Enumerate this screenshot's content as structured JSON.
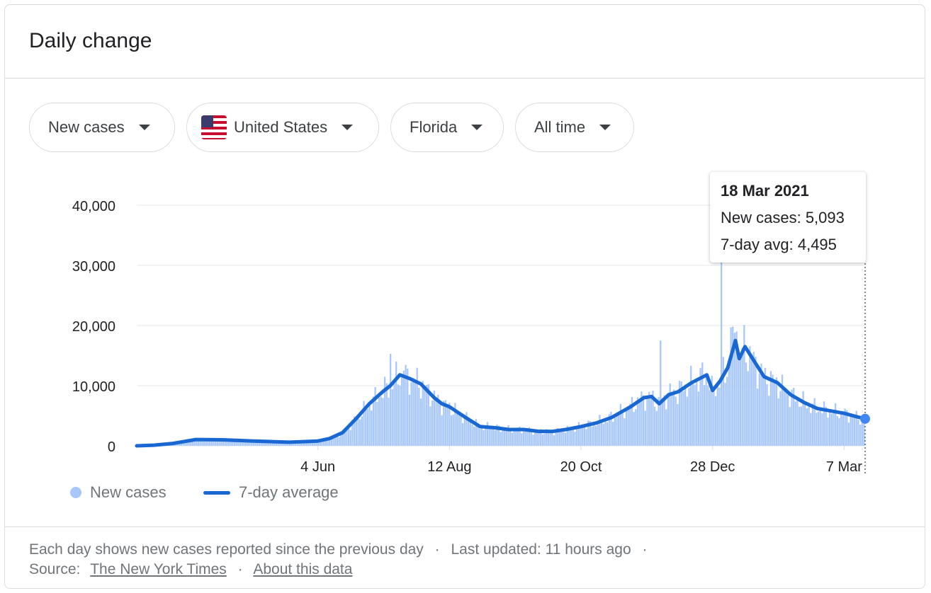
{
  "card": {
    "title": "Daily change"
  },
  "filters": {
    "metric": "New cases",
    "country": "United States",
    "country_flag_icon": "us-flag-icon",
    "region": "Florida",
    "range": "All time"
  },
  "tooltip": {
    "date": "18 Mar 2021",
    "new_cases": "New cases: 5,093",
    "avg": "7-day avg: 4,495"
  },
  "legend": {
    "new_cases": "New cases",
    "avg": "7-day average"
  },
  "footer": {
    "line1": "Each day shows new cases reported since the previous day",
    "sep": "·",
    "updated": "Last updated: 11 hours ago",
    "source_label": "Source:",
    "source_link": "The New York Times",
    "about_link": "About this data"
  },
  "colors": {
    "bars": "#a8c7fa",
    "line": "#1967d2",
    "grid": "#e8eaed"
  },
  "chart_data": {
    "type": "bar",
    "x_start": "2020-03-01",
    "x_end": "2021-03-18",
    "xticks": [
      {
        "label": "4 Jun",
        "date": "2020-06-04"
      },
      {
        "label": "12 Aug",
        "date": "2020-08-12"
      },
      {
        "label": "20 Oct",
        "date": "2020-10-20"
      },
      {
        "label": "28 Dec",
        "date": "2020-12-28"
      },
      {
        "label": "7 Mar",
        "date": "2021-03-07"
      }
    ],
    "yticks": [
      "0",
      "10,000",
      "20,000",
      "30,000",
      "40,000"
    ],
    "ylim": [
      0,
      40000
    ],
    "series": [
      {
        "name": "7-day average",
        "style": "line",
        "points": [
          [
            "2020-03-01",
            0
          ],
          [
            "2020-03-10",
            100
          ],
          [
            "2020-03-20",
            400
          ],
          [
            "2020-04-01",
            1050
          ],
          [
            "2020-04-15",
            1000
          ],
          [
            "2020-05-01",
            800
          ],
          [
            "2020-05-15",
            650
          ],
          [
            "2020-05-20",
            600
          ],
          [
            "2020-06-01",
            750
          ],
          [
            "2020-06-04",
            800
          ],
          [
            "2020-06-10",
            1200
          ],
          [
            "2020-06-17",
            2200
          ],
          [
            "2020-06-24",
            4500
          ],
          [
            "2020-07-01",
            7000
          ],
          [
            "2020-07-08",
            9000
          ],
          [
            "2020-07-12",
            10000
          ],
          [
            "2020-07-17",
            11800
          ],
          [
            "2020-07-22",
            11200
          ],
          [
            "2020-07-28",
            10300
          ],
          [
            "2020-08-04",
            8000
          ],
          [
            "2020-08-08",
            7000
          ],
          [
            "2020-08-12",
            6500
          ],
          [
            "2020-08-20",
            4800
          ],
          [
            "2020-08-28",
            3200
          ],
          [
            "2020-09-05",
            3000
          ],
          [
            "2020-09-12",
            2700
          ],
          [
            "2020-09-20",
            2700
          ],
          [
            "2020-09-28",
            2400
          ],
          [
            "2020-10-05",
            2400
          ],
          [
            "2020-10-12",
            2700
          ],
          [
            "2020-10-20",
            3200
          ],
          [
            "2020-10-28",
            3800
          ],
          [
            "2020-11-05",
            4700
          ],
          [
            "2020-11-15",
            6500
          ],
          [
            "2020-11-22",
            8000
          ],
          [
            "2020-11-26",
            8200
          ],
          [
            "2020-11-30",
            7000
          ],
          [
            "2020-12-05",
            8500
          ],
          [
            "2020-12-10",
            9000
          ],
          [
            "2020-12-17",
            10500
          ],
          [
            "2020-12-25",
            11800
          ],
          [
            "2020-12-28",
            9200
          ],
          [
            "2021-01-01",
            10800
          ],
          [
            "2021-01-05",
            13000
          ],
          [
            "2021-01-09",
            17500
          ],
          [
            "2021-01-11",
            14500
          ],
          [
            "2021-01-14",
            16500
          ],
          [
            "2021-01-18",
            14500
          ],
          [
            "2021-01-24",
            11500
          ],
          [
            "2021-01-31",
            10500
          ],
          [
            "2021-02-07",
            8500
          ],
          [
            "2021-02-14",
            7200
          ],
          [
            "2021-02-21",
            6200
          ],
          [
            "2021-02-28",
            5800
          ],
          [
            "2021-03-07",
            5400
          ],
          [
            "2021-03-14",
            4800
          ],
          [
            "2021-03-18",
            4495
          ]
        ]
      },
      {
        "name": "New cases",
        "style": "bars",
        "peaks": [
          [
            "2020-07-12",
            15300
          ],
          [
            "2020-07-19",
            12500
          ],
          [
            "2020-12-01",
            17500
          ],
          [
            "2021-01-02",
            31500
          ],
          [
            "2021-01-07",
            19700
          ],
          [
            "2021-01-10",
            19000
          ],
          [
            "2021-03-18",
            5093
          ]
        ]
      }
    ]
  }
}
